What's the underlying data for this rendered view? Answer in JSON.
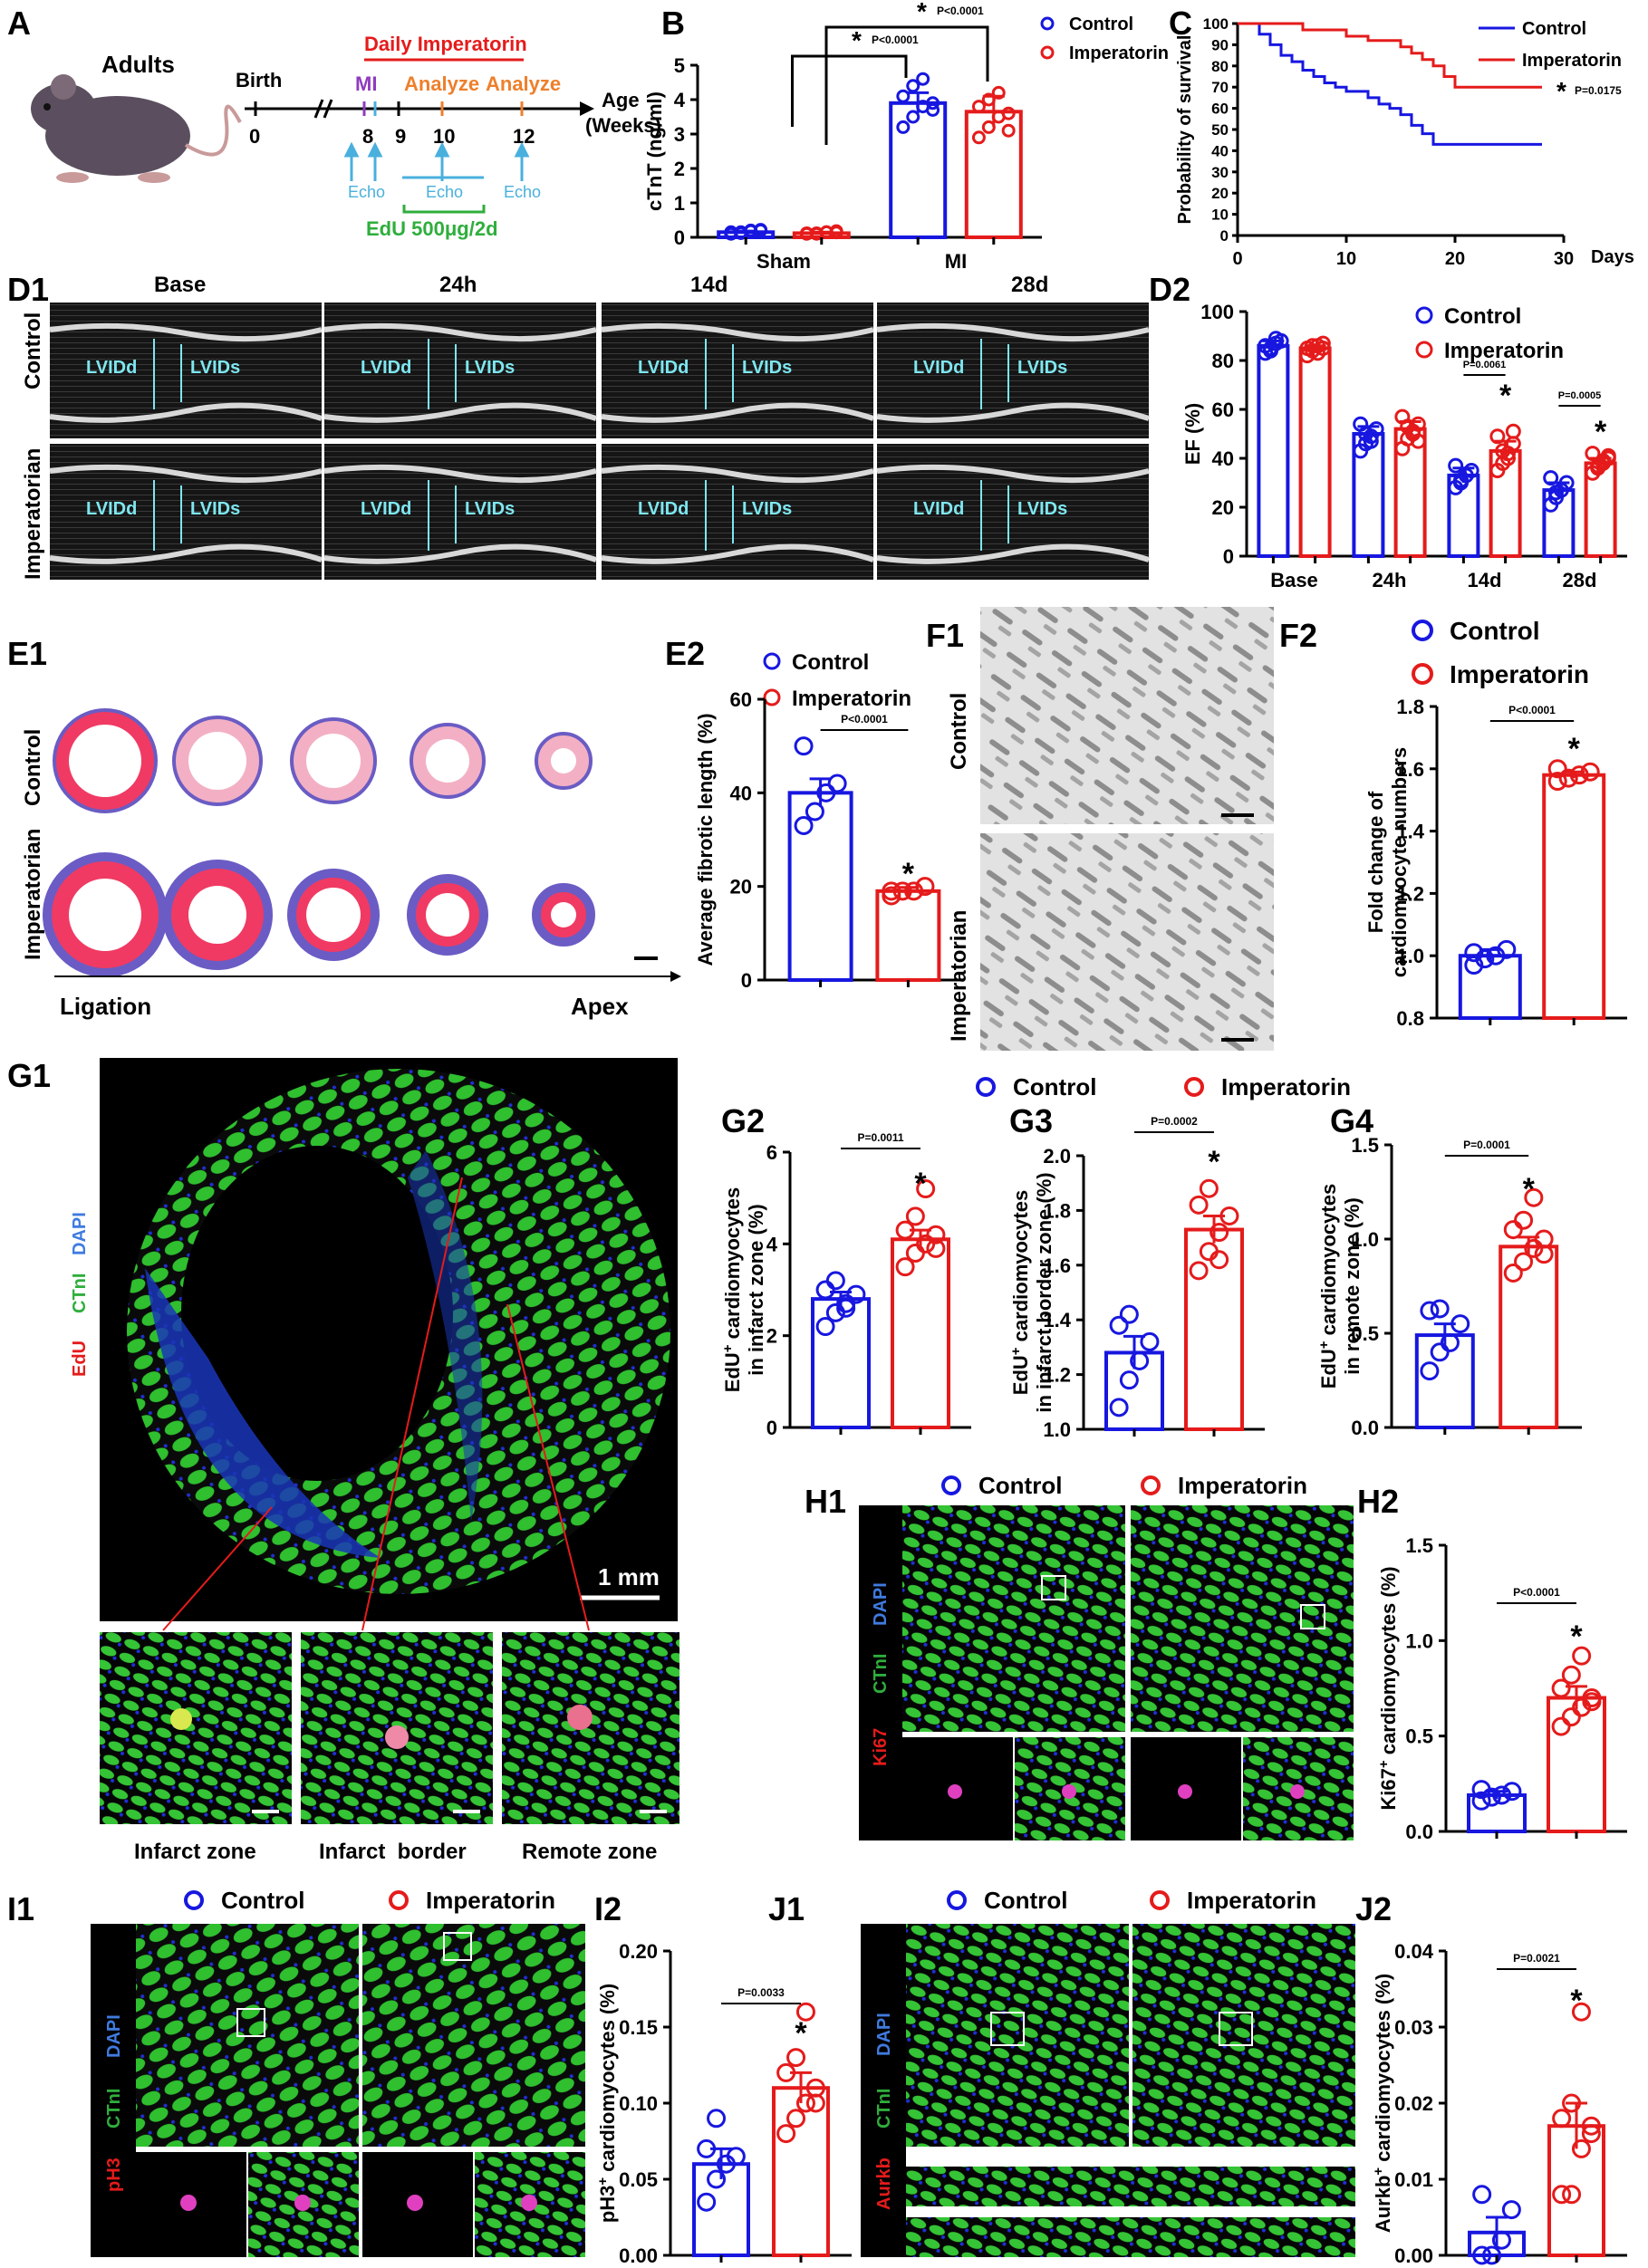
{
  "panel_letters": {
    "A": "A",
    "B": "B",
    "C": "C",
    "D1": "D1",
    "D2": "D2",
    "E1": "E1",
    "E2": "E2",
    "F1": "F1",
    "F2": "F2",
    "G1": "G1",
    "G2": "G2",
    "G3": "G3",
    "G4": "G4",
    "H1": "H1",
    "H2": "H2",
    "I1": "I1",
    "I2": "I2",
    "J1": "J1",
    "J2": "J2"
  },
  "legend": {
    "control": "Control",
    "imperatorin": "Imperatorin"
  },
  "colors": {
    "control": "#1717e0",
    "imperatorin": "#e51b1b"
  },
  "panelA": {
    "adults": "Adults",
    "birth": "Birth",
    "zero": "0",
    "daily": "Daily Imperatorin",
    "mi": "MI",
    "analyze1": "Analyze",
    "analyze2": "Analyze",
    "w8": "8",
    "w9": "9",
    "w10": "10",
    "w12": "12",
    "age": "Age",
    "weeks": "(Weeks)",
    "echo1": "Echo",
    "echo2": "Echo",
    "echo3": "Echo",
    "edu": "EdU 500μg/2d"
  },
  "panelD1": {
    "cols": [
      "Base",
      "24h",
      "14d",
      "28d"
    ],
    "rows": [
      "Control",
      "Imperatorian"
    ],
    "lvidd": "LVIDd",
    "lvids": "LVIDs"
  },
  "panelE1": {
    "rows": [
      "Control",
      "Imperatorian"
    ],
    "ligation": "Ligation",
    "apex": "Apex"
  },
  "panelF1": {
    "rows": [
      "Control",
      "Imperatorian"
    ]
  },
  "panelG1": {
    "stain_edu": "EdU",
    "stain_ctni": "CTnI",
    "stain_dapi": "DAPI",
    "scale": "1 mm",
    "zones": [
      "Infarct zone",
      "Infarct  border",
      "Remote zone"
    ]
  },
  "panelH1": {
    "stain_ki67": "Ki67",
    "stain_ctni": "CTnI",
    "stain_dapi": "DAPI"
  },
  "panelI1": {
    "stain_ph3": "pH3",
    "stain_ctni": "CTnI",
    "stain_dapi": "DAPI"
  },
  "panelJ1": {
    "stain_aurkb": "Aurkb",
    "stain_ctni": "CTnI",
    "stain_dapi": "DAPI"
  },
  "chart_data": [
    {
      "id": "B",
      "type": "bar",
      "ylabel": "cTnT (ng/ml)",
      "ylim": [
        0,
        5
      ],
      "yticks": [
        0,
        1,
        2,
        3,
        4,
        5
      ],
      "categories": [
        "Sham",
        "MI"
      ],
      "series": [
        {
          "name": "Control",
          "values": [
            0.15,
            3.9
          ],
          "err": [
            0.03,
            0.3
          ]
        },
        {
          "name": "Imperatorin",
          "values": [
            0.12,
            3.65
          ],
          "err": [
            0.03,
            0.45
          ]
        }
      ],
      "points": {
        "Control": [
          [
            0.1,
            0.15,
            0.2,
            0.22,
            0.15,
            0.12,
            0.18,
            0.2
          ],
          [
            3.2,
            3.5,
            3.8,
            3.9,
            4.1,
            4.4,
            4.6,
            3.7
          ]
        ],
        "Imperatorin": [
          [
            0.1,
            0.12,
            0.15,
            0.18,
            0.12,
            0.1,
            0.15,
            0.14
          ],
          [
            2.9,
            3.2,
            3.5,
            3.6,
            3.8,
            4.0,
            4.2,
            3.1
          ]
        ]
      },
      "annotations": [
        "P<0.0001",
        "P<0.0001"
      ]
    },
    {
      "id": "C",
      "type": "line",
      "ylabel": "Probability of survival",
      "xlabel": "Days",
      "xlim": [
        0,
        30
      ],
      "ylim": [
        0,
        100
      ],
      "xticks": [
        0,
        10,
        20,
        30
      ],
      "yticks": [
        0,
        10,
        20,
        30,
        40,
        50,
        60,
        70,
        80,
        90,
        100
      ],
      "series": [
        {
          "name": "Control",
          "x": [
            0,
            2,
            3,
            4,
            5,
            6,
            7,
            8,
            9,
            10,
            11,
            12,
            13,
            14,
            15,
            16,
            17,
            18,
            28
          ],
          "y": [
            100,
            95,
            90,
            85,
            82,
            78,
            75,
            72,
            70,
            68,
            68,
            65,
            62,
            60,
            57,
            52,
            48,
            43,
            43
          ]
        },
        {
          "name": "Imperatorin",
          "x": [
            0,
            6,
            10,
            12,
            15,
            16,
            17,
            18,
            19,
            20,
            28
          ],
          "y": [
            100,
            97,
            94,
            92,
            89,
            86,
            83,
            80,
            75,
            70,
            70
          ]
        }
      ],
      "annotation": "P=0.0175"
    },
    {
      "id": "D2",
      "type": "bar",
      "ylabel": "EF (%)",
      "ylim": [
        0,
        100
      ],
      "yticks": [
        0,
        20,
        40,
        60,
        80,
        100
      ],
      "categories": [
        "Base",
        "24h",
        "14d",
        "28d"
      ],
      "series": [
        {
          "name": "Control",
          "values": [
            86,
            50,
            33,
            27
          ],
          "err": [
            2,
            3,
            3,
            3
          ]
        },
        {
          "name": "Imperatorin",
          "values": [
            85,
            52,
            43,
            38
          ],
          "err": [
            1,
            3,
            4,
            2
          ]
        }
      ],
      "points": {
        "Control": [
          [
            83,
            85,
            87,
            88,
            86,
            84,
            89
          ],
          [
            43,
            46,
            49,
            52,
            54,
            50,
            47
          ],
          [
            28,
            30,
            33,
            35,
            37,
            31
          ],
          [
            21,
            24,
            27,
            30,
            32,
            26
          ]
        ],
        "Imperatorin": [
          [
            82,
            84,
            86,
            87,
            85,
            86,
            83,
            85
          ],
          [
            44,
            48,
            51,
            54,
            57,
            53,
            50,
            47
          ],
          [
            35,
            38,
            42,
            46,
            49,
            43,
            40,
            51
          ],
          [
            34,
            36,
            38,
            40,
            42,
            37,
            39,
            41
          ]
        ]
      },
      "annotations": [
        "P=0.0061",
        "P=0.0005"
      ]
    },
    {
      "id": "E2",
      "type": "bar",
      "ylabel": "Average fibrotic length (%)",
      "ylim": [
        0,
        60
      ],
      "yticks": [
        0,
        20,
        40,
        60
      ],
      "categories": [
        ""
      ],
      "series": [
        {
          "name": "Control",
          "values": [
            40
          ],
          "err": [
            3
          ]
        },
        {
          "name": "Imperatorin",
          "values": [
            19
          ],
          "err": [
            0.8
          ]
        }
      ],
      "points": {
        "Control": [
          [
            33,
            36,
            40,
            42,
            50
          ]
        ],
        "Imperatorin": [
          [
            18,
            19,
            19,
            20,
            19
          ]
        ]
      },
      "annotations": [
        "P<0.0001"
      ]
    },
    {
      "id": "F2",
      "type": "bar",
      "ylabel": "Fold change of cardiomyocyte numbers",
      "ylim": [
        0.8,
        1.8
      ],
      "yticks": [
        0.8,
        1.0,
        1.2,
        1.4,
        1.6,
        1.8
      ],
      "categories": [
        ""
      ],
      "series": [
        {
          "name": "Control",
          "values": [
            1.0
          ],
          "err": [
            0.02
          ]
        },
        {
          "name": "Imperatorin",
          "values": [
            1.58
          ],
          "err": [
            0.01
          ]
        }
      ],
      "points": {
        "Control": [
          [
            0.97,
            0.99,
            1.0,
            1.02,
            1.01
          ]
        ],
        "Imperatorin": [
          [
            1.56,
            1.57,
            1.58,
            1.59,
            1.6
          ]
        ]
      },
      "annotations": [
        "P<0.0001"
      ]
    },
    {
      "id": "G2",
      "type": "bar",
      "ylabel": "EdU+ cardiomyocytes in infarct zone (%)",
      "ylim": [
        0,
        6
      ],
      "yticks": [
        0,
        2,
        4,
        6
      ],
      "categories": [
        ""
      ],
      "series": [
        {
          "name": "Control",
          "values": [
            2.8
          ],
          "err": [
            0.15
          ]
        },
        {
          "name": "Imperatorin",
          "values": [
            4.1
          ],
          "err": [
            0.2
          ]
        }
      ],
      "points": {
        "Control": [
          [
            2.2,
            2.5,
            2.7,
            2.9,
            3.0,
            3.2,
            2.6
          ]
        ],
        "Imperatorin": [
          [
            3.5,
            3.8,
            4.0,
            4.2,
            4.3,
            4.6,
            5.2,
            3.9
          ]
        ]
      },
      "annotations": [
        "P=0.0011"
      ]
    },
    {
      "id": "G3",
      "type": "bar",
      "ylabel": "EdU+ cardiomyocytes in infarct border zone (%)",
      "ylim": [
        1.0,
        2.0
      ],
      "yticks": [
        1.0,
        1.2,
        1.4,
        1.6,
        1.8,
        2.0
      ],
      "categories": [
        ""
      ],
      "series": [
        {
          "name": "Control",
          "values": [
            1.28
          ],
          "err": [
            0.06
          ]
        },
        {
          "name": "Imperatorin",
          "values": [
            1.73
          ],
          "err": [
            0.05
          ]
        }
      ],
      "points": {
        "Control": [
          [
            1.08,
            1.18,
            1.25,
            1.32,
            1.38,
            1.42
          ]
        ],
        "Imperatorin": [
          [
            1.58,
            1.65,
            1.72,
            1.78,
            1.82,
            1.88,
            1.62
          ]
        ]
      },
      "annotations": [
        "P=0.0002"
      ]
    },
    {
      "id": "G4",
      "type": "bar",
      "ylabel": "EdU+ cardiomyocytes in remote zone (%)",
      "ylim": [
        0,
        1.5
      ],
      "yticks": [
        0,
        0.5,
        1.0,
        1.5
      ],
      "categories": [
        ""
      ],
      "series": [
        {
          "name": "Control",
          "values": [
            0.49
          ],
          "err": [
            0.06
          ]
        },
        {
          "name": "Imperatorin",
          "values": [
            0.96
          ],
          "err": [
            0.05
          ]
        }
      ],
      "points": {
        "Control": [
          [
            0.3,
            0.4,
            0.45,
            0.55,
            0.62,
            0.63
          ]
        ],
        "Imperatorin": [
          [
            0.82,
            0.88,
            0.95,
            1.0,
            1.05,
            1.1,
            1.22,
            0.92
          ]
        ]
      },
      "annotations": [
        "P=0.0001"
      ]
    },
    {
      "id": "H2",
      "type": "bar",
      "ylabel": "Ki67+ cardiomyocytes (%)",
      "ylim": [
        0,
        1.5
      ],
      "yticks": [
        0,
        0.5,
        1.0,
        1.5
      ],
      "categories": [
        ""
      ],
      "series": [
        {
          "name": "Control",
          "values": [
            0.19
          ],
          "err": [
            0.02
          ]
        },
        {
          "name": "Imperatorin",
          "values": [
            0.7
          ],
          "err": [
            0.06
          ]
        }
      ],
      "points": {
        "Control": [
          [
            0.16,
            0.18,
            0.19,
            0.21,
            0.22
          ]
        ],
        "Imperatorin": [
          [
            0.55,
            0.6,
            0.65,
            0.7,
            0.75,
            0.82,
            0.92,
            0.68
          ]
        ]
      },
      "annotations": [
        "P<0.0001"
      ]
    },
    {
      "id": "I2",
      "type": "bar",
      "ylabel": "pH3+ cardiomyocytes (%)",
      "ylim": [
        0,
        0.2
      ],
      "yticks": [
        0.0,
        0.05,
        0.1,
        0.15,
        0.2
      ],
      "categories": [
        ""
      ],
      "series": [
        {
          "name": "Control",
          "values": [
            0.06
          ],
          "err": [
            0.01
          ]
        },
        {
          "name": "Imperatorin",
          "values": [
            0.11
          ],
          "err": [
            0.01
          ]
        }
      ],
      "points": {
        "Control": [
          [
            0.035,
            0.05,
            0.06,
            0.065,
            0.07,
            0.09
          ]
        ],
        "Imperatorin": [
          [
            0.08,
            0.09,
            0.1,
            0.11,
            0.12,
            0.13,
            0.16,
            0.1
          ]
        ]
      },
      "annotations": [
        "P=0.0033"
      ]
    },
    {
      "id": "J2",
      "type": "bar",
      "ylabel": "Aurkb+ cardiomyocytes (%)",
      "ylim": [
        0,
        0.04
      ],
      "yticks": [
        0.0,
        0.01,
        0.02,
        0.03,
        0.04
      ],
      "categories": [
        ""
      ],
      "series": [
        {
          "name": "Control",
          "values": [
            0.003
          ],
          "err": [
            0.002
          ]
        },
        {
          "name": "Imperatorin",
          "values": [
            0.017
          ],
          "err": [
            0.003
          ]
        }
      ],
      "points": {
        "Control": [
          [
            0.0,
            0.0,
            0.002,
            0.006,
            0.008
          ]
        ],
        "Imperatorin": [
          [
            0.008,
            0.008,
            0.014,
            0.017,
            0.018,
            0.02,
            0.032,
            0.016
          ]
        ]
      },
      "annotations": [
        "P=0.0021"
      ]
    }
  ]
}
